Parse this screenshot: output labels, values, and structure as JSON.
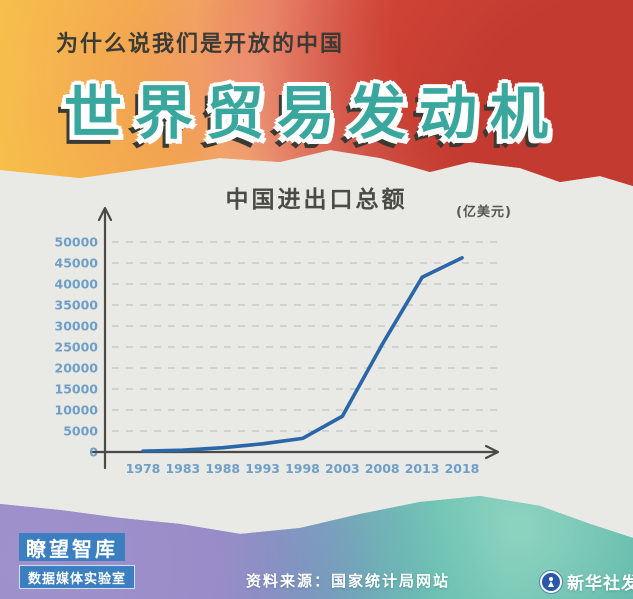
{
  "header": {
    "kicker": "为什么说我们是开放的中国",
    "title": "世界贸易发动机"
  },
  "chart_data": {
    "type": "line",
    "title": "中国进出口总额",
    "unit_label": "(亿美元)",
    "categories": [
      "1978",
      "1983",
      "1988",
      "1993",
      "1998",
      "2003",
      "2008",
      "2013",
      "2018"
    ],
    "values": [
      206,
      436,
      1028,
      1957,
      3240,
      8510,
      25633,
      41600,
      46230
    ],
    "yticks": [
      0,
      5000,
      10000,
      15000,
      20000,
      25000,
      30000,
      35000,
      40000,
      45000,
      50000
    ],
    "ylim": [
      0,
      50000
    ],
    "xlabel": "",
    "ylabel": "",
    "grid": "horizontal-dashed",
    "legend": "none",
    "line_color": "#2a66a8",
    "tick_label_color": "#6f9ec6"
  },
  "footer": {
    "brand_line1": "瞭望智库",
    "brand_line2": "数据媒体实验室",
    "source": "资料来源：国家统计局网站",
    "agency": "新华社发"
  },
  "colors": {
    "paper": "#e9e9e6",
    "title_teal": "#3aa79e",
    "kicker_dark": "#3b3b35",
    "brand_blue": "#3c7fc1",
    "xinhua_blue": "#2a57a8"
  }
}
